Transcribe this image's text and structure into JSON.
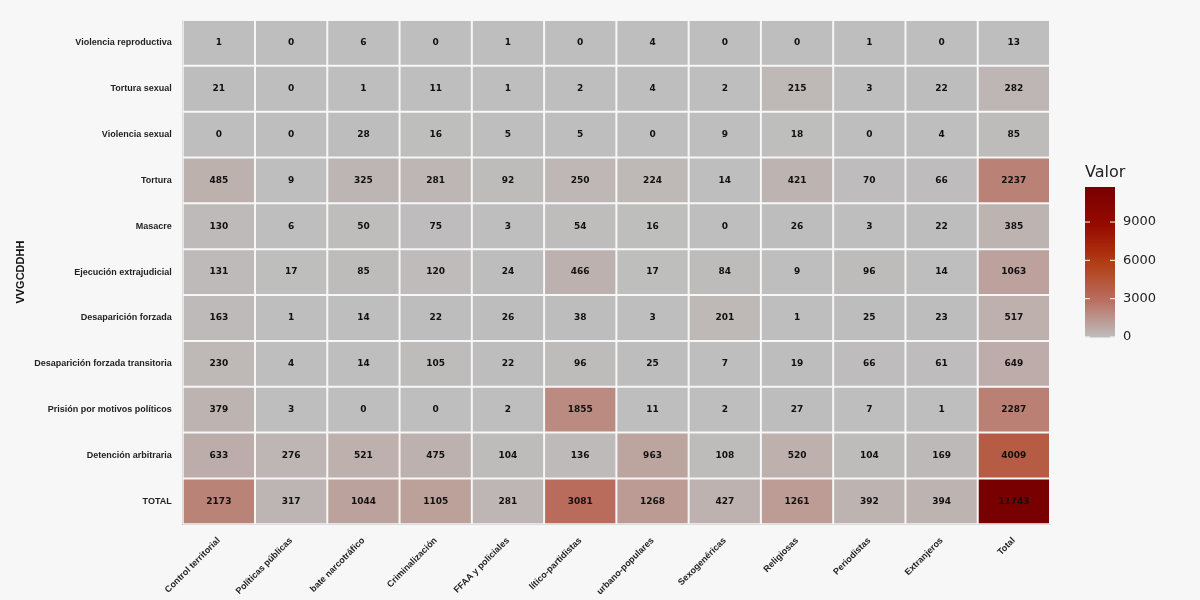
{
  "chart_data": {
    "type": "heatmap",
    "ylabel": "VVGCDDHH",
    "clabel": "Valor",
    "categories": [
      "Control territorial",
      "Políticas públicas",
      "bate narcotráfico",
      "Criminalización",
      "FFAA y policiales",
      "lítico-partidistas",
      "urbano-populares",
      "Sexogenéricas",
      "Religiosas",
      "Periodistas",
      "Extranjeros",
      "Total"
    ],
    "y_categories": [
      "Violencia reproductiva",
      "Tortura sexual",
      "Violencia sexual",
      "Tortura",
      "Masacre",
      "Ejecución extrajudicial",
      "Desaparición forzada",
      "Desaparición forzada transitoria",
      "Prisión por motivos políticos",
      "Detención arbitraria",
      "TOTAL"
    ],
    "cells": [
      [
        1,
        0,
        6,
        0,
        1,
        0,
        4,
        0,
        0,
        1,
        0,
        13
      ],
      [
        21,
        0,
        1,
        11,
        1,
        2,
        4,
        2,
        215,
        3,
        22,
        282
      ],
      [
        0,
        0,
        28,
        16,
        5,
        5,
        0,
        9,
        18,
        0,
        4,
        85
      ],
      [
        485,
        9,
        325,
        281,
        92,
        250,
        224,
        14,
        421,
        70,
        66,
        2237
      ],
      [
        130,
        6,
        50,
        75,
        3,
        54,
        16,
        0,
        26,
        3,
        22,
        385
      ],
      [
        131,
        17,
        85,
        120,
        24,
        466,
        17,
        84,
        9,
        96,
        14,
        1063
      ],
      [
        163,
        1,
        14,
        22,
        26,
        38,
        3,
        201,
        1,
        25,
        23,
        517
      ],
      [
        230,
        4,
        14,
        105,
        22,
        96,
        25,
        7,
        19,
        66,
        61,
        649
      ],
      [
        379,
        3,
        0,
        0,
        2,
        1855,
        11,
        2,
        27,
        7,
        1,
        2287
      ],
      [
        633,
        276,
        521,
        475,
        104,
        136,
        963,
        108,
        520,
        104,
        169,
        4009
      ],
      [
        2173,
        317,
        1044,
        1105,
        281,
        3081,
        1268,
        427,
        1261,
        392,
        394,
        11743
      ]
    ],
    "clim": [
      0,
      11743
    ],
    "cticks": [
      0,
      3000,
      6000,
      9000
    ],
    "data_labels": true
  }
}
